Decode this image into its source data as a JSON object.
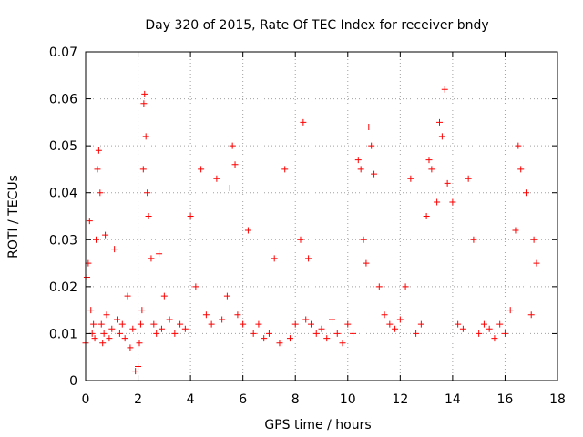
{
  "chart_data": {
    "type": "scatter",
    "title": "Day 320 of 2015, Rate Of TEC Index for receiver bndy",
    "xlabel": "GPS time / hours",
    "ylabel": "ROTI / TECUs",
    "xlim": [
      0,
      18
    ],
    "ylim": [
      0,
      0.07
    ],
    "xticks": [
      "0",
      "2",
      "4",
      "6",
      "8",
      "10",
      "12",
      "14",
      "16",
      "18"
    ],
    "yticks": [
      "0",
      "0.01",
      "0.02",
      "0.03",
      "0.04",
      "0.05",
      "0.06",
      "0.07"
    ],
    "grid": true,
    "marker": "+",
    "marker_color": "#ff0000",
    "series": [
      {
        "name": "ROTI",
        "x": [
          0.0,
          0.05,
          0.1,
          0.15,
          0.2,
          0.25,
          0.3,
          0.35,
          0.4,
          0.45,
          0.5,
          0.55,
          0.6,
          0.65,
          0.7,
          0.75,
          0.8,
          0.9,
          1.0,
          1.1,
          1.2,
          1.3,
          1.4,
          1.5,
          1.6,
          1.7,
          1.8,
          1.9,
          2.0,
          2.05,
          2.1,
          2.15,
          2.2,
          2.22,
          2.25,
          2.3,
          2.35,
          2.4,
          2.5,
          2.6,
          2.7,
          2.8,
          2.9,
          3.0,
          3.2,
          3.4,
          3.6,
          3.8,
          4.0,
          4.2,
          4.4,
          4.6,
          4.8,
          5.0,
          5.2,
          5.4,
          5.5,
          5.6,
          5.7,
          5.8,
          6.0,
          6.2,
          6.4,
          6.6,
          6.8,
          7.0,
          7.2,
          7.4,
          7.6,
          7.8,
          8.0,
          8.2,
          8.3,
          8.4,
          8.5,
          8.6,
          8.8,
          9.0,
          9.2,
          9.4,
          9.6,
          9.8,
          10.0,
          10.2,
          10.4,
          10.5,
          10.6,
          10.7,
          10.8,
          10.9,
          11.0,
          11.2,
          11.4,
          11.6,
          11.8,
          12.0,
          12.2,
          12.4,
          12.6,
          12.8,
          13.0,
          13.1,
          13.2,
          13.4,
          13.5,
          13.6,
          13.7,
          13.8,
          14.0,
          14.2,
          14.4,
          14.6,
          14.8,
          15.0,
          15.2,
          15.4,
          15.6,
          15.8,
          16.0,
          16.2,
          16.4,
          16.5,
          16.6,
          16.8,
          17.0,
          17.1,
          17.2
        ],
        "y": [
          0.008,
          0.022,
          0.025,
          0.034,
          0.015,
          0.01,
          0.012,
          0.009,
          0.03,
          0.045,
          0.049,
          0.04,
          0.012,
          0.008,
          0.01,
          0.031,
          0.014,
          0.009,
          0.011,
          0.028,
          0.013,
          0.01,
          0.012,
          0.009,
          0.018,
          0.007,
          0.011,
          0.002,
          0.003,
          0.008,
          0.012,
          0.015,
          0.045,
          0.059,
          0.061,
          0.052,
          0.04,
          0.035,
          0.026,
          0.012,
          0.01,
          0.027,
          0.011,
          0.018,
          0.013,
          0.01,
          0.012,
          0.011,
          0.035,
          0.02,
          0.045,
          0.014,
          0.012,
          0.043,
          0.013,
          0.018,
          0.041,
          0.05,
          0.046,
          0.014,
          0.012,
          0.032,
          0.01,
          0.012,
          0.009,
          0.01,
          0.026,
          0.008,
          0.045,
          0.009,
          0.012,
          0.03,
          0.055,
          0.013,
          0.026,
          0.012,
          0.01,
          0.011,
          0.009,
          0.013,
          0.01,
          0.008,
          0.012,
          0.01,
          0.047,
          0.045,
          0.03,
          0.025,
          0.054,
          0.05,
          0.044,
          0.02,
          0.014,
          0.012,
          0.011,
          0.013,
          0.02,
          0.043,
          0.01,
          0.012,
          0.035,
          0.047,
          0.045,
          0.038,
          0.055,
          0.052,
          0.062,
          0.042,
          0.038,
          0.012,
          0.011,
          0.043,
          0.03,
          0.01,
          0.012,
          0.011,
          0.009,
          0.012,
          0.01,
          0.015,
          0.032,
          0.05,
          0.045,
          0.04,
          0.014,
          0.03,
          0.025
        ]
      }
    ]
  }
}
